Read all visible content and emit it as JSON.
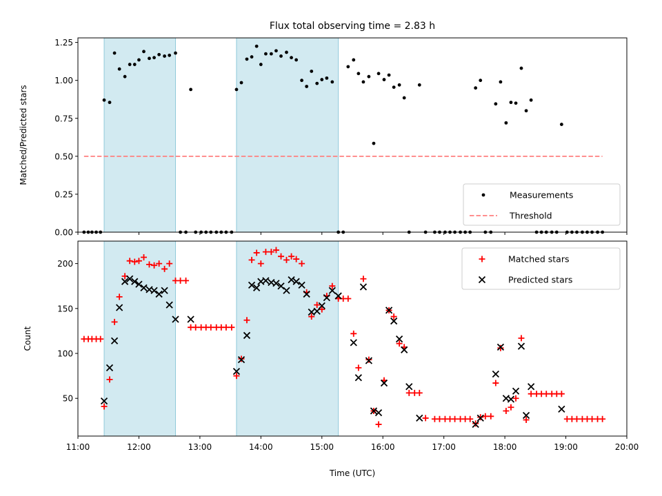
{
  "chart_data": [
    {
      "type": "scatter",
      "title": "Flux total observing time = 2.83 h",
      "xlabel": "",
      "ylabel": "Matched/Predicted stars",
      "xlim": [
        11.0,
        20.0
      ],
      "ylim": [
        0,
        1.28
      ],
      "yticks": [
        "0.00",
        "0.25",
        "0.50",
        "0.75",
        "1.00",
        "1.25"
      ],
      "ytick_values": [
        0,
        0.25,
        0.5,
        0.75,
        1.0,
        1.25
      ],
      "grid": false,
      "legend_position": "lower-right",
      "shaded_intervals": [
        [
          11.43,
          12.6
        ],
        [
          13.6,
          15.27
        ]
      ],
      "series": [
        {
          "name": "Measurements",
          "marker": "dot",
          "color": "#000000",
          "x": [
            11.1,
            11.17,
            11.23,
            11.3,
            11.37,
            11.43,
            11.52,
            11.6,
            11.68,
            11.77,
            11.85,
            11.93,
            12.0,
            12.08,
            12.17,
            12.25,
            12.33,
            12.42,
            12.5,
            12.6,
            12.68,
            12.77,
            12.85,
            12.93,
            13.02,
            13.1,
            13.18,
            13.27,
            13.35,
            13.43,
            13.52,
            13.6,
            13.68,
            13.77,
            13.85,
            13.93,
            14.0,
            14.08,
            14.17,
            14.25,
            14.33,
            14.42,
            14.5,
            14.58,
            14.67,
            14.75,
            14.83,
            14.92,
            15.0,
            15.08,
            15.17,
            15.27,
            15.35,
            15.43,
            15.52,
            15.6,
            15.68,
            15.77,
            15.85,
            15.93,
            16.02,
            16.1,
            16.18,
            16.27,
            16.35,
            16.43,
            16.6,
            16.7,
            16.85,
            16.93,
            17.02,
            17.1,
            17.18,
            17.27,
            17.35,
            17.43,
            17.52,
            17.6,
            17.68,
            17.77,
            17.85,
            17.93,
            18.02,
            18.1,
            18.18,
            18.27,
            18.35,
            18.43,
            18.52,
            18.6,
            18.68,
            18.77,
            18.85,
            18.93,
            19.02,
            19.1,
            19.18,
            19.27,
            19.35,
            19.43,
            19.52,
            19.6
          ],
          "y": [
            0,
            0,
            0,
            0,
            0,
            0.87,
            0.855,
            1.18,
            1.075,
            1.025,
            1.105,
            1.105,
            1.135,
            1.19,
            1.145,
            1.15,
            1.17,
            1.16,
            1.165,
            1.18,
            0,
            0,
            0.94,
            0,
            0,
            0,
            0,
            0,
            0,
            0,
            0,
            0.94,
            0.985,
            1.14,
            1.155,
            1.225,
            1.105,
            1.175,
            1.175,
            1.195,
            1.16,
            1.185,
            1.15,
            1.135,
            1.0,
            0.96,
            1.06,
            0.98,
            1.005,
            1.015,
            0.99,
            0,
            0,
            1.09,
            1.135,
            1.045,
            0.99,
            1.025,
            0.585,
            1.045,
            1.005,
            1.035,
            0.955,
            0.97,
            0.885,
            0,
            0.97,
            0,
            0,
            0,
            0,
            0,
            0,
            0,
            0,
            0,
            0.95,
            1.0,
            0,
            0,
            0.845,
            0.99,
            0.72,
            0.855,
            0.85,
            1.08,
            0.8,
            0.87,
            0,
            0,
            0,
            0,
            0,
            0.71,
            0,
            0,
            0,
            0,
            0,
            0,
            0,
            0
          ]
        },
        {
          "name": "Threshold",
          "marker": "dashed-line",
          "color": "#ff7f7f",
          "x": [
            11.1,
            19.6
          ],
          "y": [
            0.5,
            0.5
          ]
        }
      ]
    },
    {
      "type": "scatter",
      "title": "",
      "xlabel": "Time (UTC)",
      "ylabel": "Count",
      "xlim": [
        11.0,
        20.0
      ],
      "xticks": [
        "11:00",
        "12:00",
        "13:00",
        "14:00",
        "15:00",
        "16:00",
        "17:00",
        "18:00",
        "19:00",
        "20:00"
      ],
      "xtick_values": [
        11,
        12,
        13,
        14,
        15,
        16,
        17,
        18,
        19,
        20
      ],
      "ylim": [
        8,
        225
      ],
      "yticks": [
        "50",
        "100",
        "150",
        "200"
      ],
      "ytick_values": [
        50,
        100,
        150,
        200
      ],
      "grid": false,
      "legend_position": "upper-right",
      "shaded_intervals": [
        [
          11.43,
          12.6
        ],
        [
          13.6,
          15.27
        ]
      ],
      "series": [
        {
          "name": "Matched stars",
          "marker": "plus",
          "color": "#ff0000",
          "x": [
            11.1,
            11.17,
            11.23,
            11.3,
            11.37,
            11.43,
            11.52,
            11.6,
            11.68,
            11.77,
            11.85,
            11.93,
            12.0,
            12.08,
            12.17,
            12.25,
            12.33,
            12.42,
            12.5,
            12.6,
            12.68,
            12.77,
            12.85,
            12.93,
            13.02,
            13.1,
            13.18,
            13.27,
            13.35,
            13.43,
            13.52,
            13.6,
            13.68,
            13.77,
            13.85,
            13.93,
            14.0,
            14.08,
            14.17,
            14.25,
            14.33,
            14.42,
            14.5,
            14.58,
            14.67,
            14.75,
            14.83,
            14.92,
            15.0,
            15.08,
            15.17,
            15.27,
            15.35,
            15.43,
            15.52,
            15.6,
            15.68,
            15.77,
            15.85,
            15.93,
            16.02,
            16.1,
            16.18,
            16.27,
            16.35,
            16.43,
            16.52,
            16.6,
            16.7,
            16.85,
            16.93,
            17.02,
            17.1,
            17.18,
            17.27,
            17.35,
            17.43,
            17.52,
            17.6,
            17.68,
            17.77,
            17.85,
            17.93,
            18.02,
            18.1,
            18.18,
            18.27,
            18.35,
            18.43,
            18.52,
            18.6,
            18.68,
            18.77,
            18.85,
            18.93,
            19.02,
            19.1,
            19.18,
            19.27,
            19.35,
            19.43,
            19.52,
            19.6
          ],
          "y": [
            116,
            116,
            116,
            116,
            116,
            41,
            71,
            135,
            163,
            186,
            203,
            202,
            203,
            207,
            199,
            198,
            200,
            194,
            200,
            181,
            181,
            181,
            129,
            129,
            129,
            129,
            129,
            129,
            129,
            129,
            129,
            75,
            94,
            137,
            204,
            212,
            200,
            213,
            213,
            215,
            208,
            204,
            208,
            205,
            200,
            168,
            141,
            154,
            149,
            164,
            175,
            161,
            161,
            161,
            122,
            84,
            183,
            93,
            36,
            21,
            70,
            148,
            141,
            111,
            107,
            56,
            56,
            56,
            28,
            27,
            27,
            27,
            27,
            27,
            27,
            27,
            27,
            22,
            29,
            30,
            30,
            67,
            106,
            36,
            40,
            50,
            117,
            26,
            55,
            55,
            55,
            55,
            55,
            55,
            55,
            27,
            27,
            27,
            27,
            27,
            27,
            27,
            27
          ]
        },
        {
          "name": "Predicted stars",
          "marker": "x",
          "color": "#000000",
          "x": [
            11.43,
            11.52,
            11.6,
            11.68,
            11.77,
            11.85,
            11.93,
            12.0,
            12.08,
            12.17,
            12.25,
            12.33,
            12.42,
            12.5,
            12.6,
            12.85,
            13.6,
            13.68,
            13.77,
            13.85,
            13.93,
            14.0,
            14.08,
            14.17,
            14.25,
            14.33,
            14.42,
            14.5,
            14.58,
            14.67,
            14.75,
            14.83,
            14.92,
            15.0,
            15.08,
            15.17,
            15.27,
            15.52,
            15.6,
            15.68,
            15.77,
            15.85,
            15.93,
            16.02,
            16.1,
            16.18,
            16.27,
            16.35,
            16.43,
            16.6,
            17.52,
            17.6,
            17.85,
            17.93,
            18.02,
            18.1,
            18.18,
            18.27,
            18.35,
            18.43,
            18.93
          ],
          "y": [
            47,
            84,
            114,
            151,
            180,
            183,
            180,
            177,
            173,
            171,
            170,
            166,
            170,
            154,
            138,
            138,
            80,
            93,
            120,
            176,
            173,
            180,
            181,
            179,
            178,
            175,
            170,
            182,
            180,
            176,
            166,
            146,
            147,
            153,
            162,
            170,
            164,
            112,
            73,
            174,
            92,
            36,
            34,
            67,
            148,
            136,
            116,
            104,
            63,
            28,
            21,
            28,
            77,
            107,
            50,
            49,
            58,
            108,
            31,
            63,
            38
          ]
        }
      ]
    }
  ]
}
